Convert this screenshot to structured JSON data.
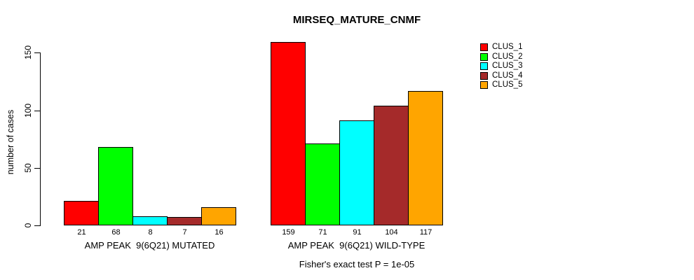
{
  "figure": {
    "title": "MIRSEQ_MATURE_CNMF",
    "ylabel": "number of cases",
    "footer": "Fisher's exact test P = 1e-05"
  },
  "chart_data": {
    "type": "bar",
    "title": "MIRSEQ_MATURE_CNMF",
    "xlabel": "",
    "ylabel": "number of cases",
    "ylim": [
      0,
      150
    ],
    "yticks": [
      0,
      50,
      100,
      150
    ],
    "grid": false,
    "legend_position": "top-right",
    "categories": [
      "AMP PEAK  9(6Q21) MUTATED",
      "AMP PEAK  9(6Q21) WILD-TYPE"
    ],
    "series": [
      {
        "name": "CLUS_1",
        "color": "#FF0000",
        "values": [
          21,
          159
        ]
      },
      {
        "name": "CLUS_2",
        "color": "#00FF00",
        "values": [
          68,
          71
        ]
      },
      {
        "name": "CLUS_3",
        "color": "#00FFFF",
        "values": [
          8,
          91
        ]
      },
      {
        "name": "CLUS_4",
        "color": "#A52A2A",
        "values": [
          7,
          104
        ]
      },
      {
        "name": "CLUS_5",
        "color": "#FFA500",
        "values": [
          16,
          117
        ]
      }
    ],
    "bar_value_labels": [
      [
        21,
        68,
        8,
        7,
        16
      ],
      [
        159,
        71,
        91,
        104,
        117
      ]
    ],
    "annotation": "Fisher's exact test P = 1e-05"
  }
}
